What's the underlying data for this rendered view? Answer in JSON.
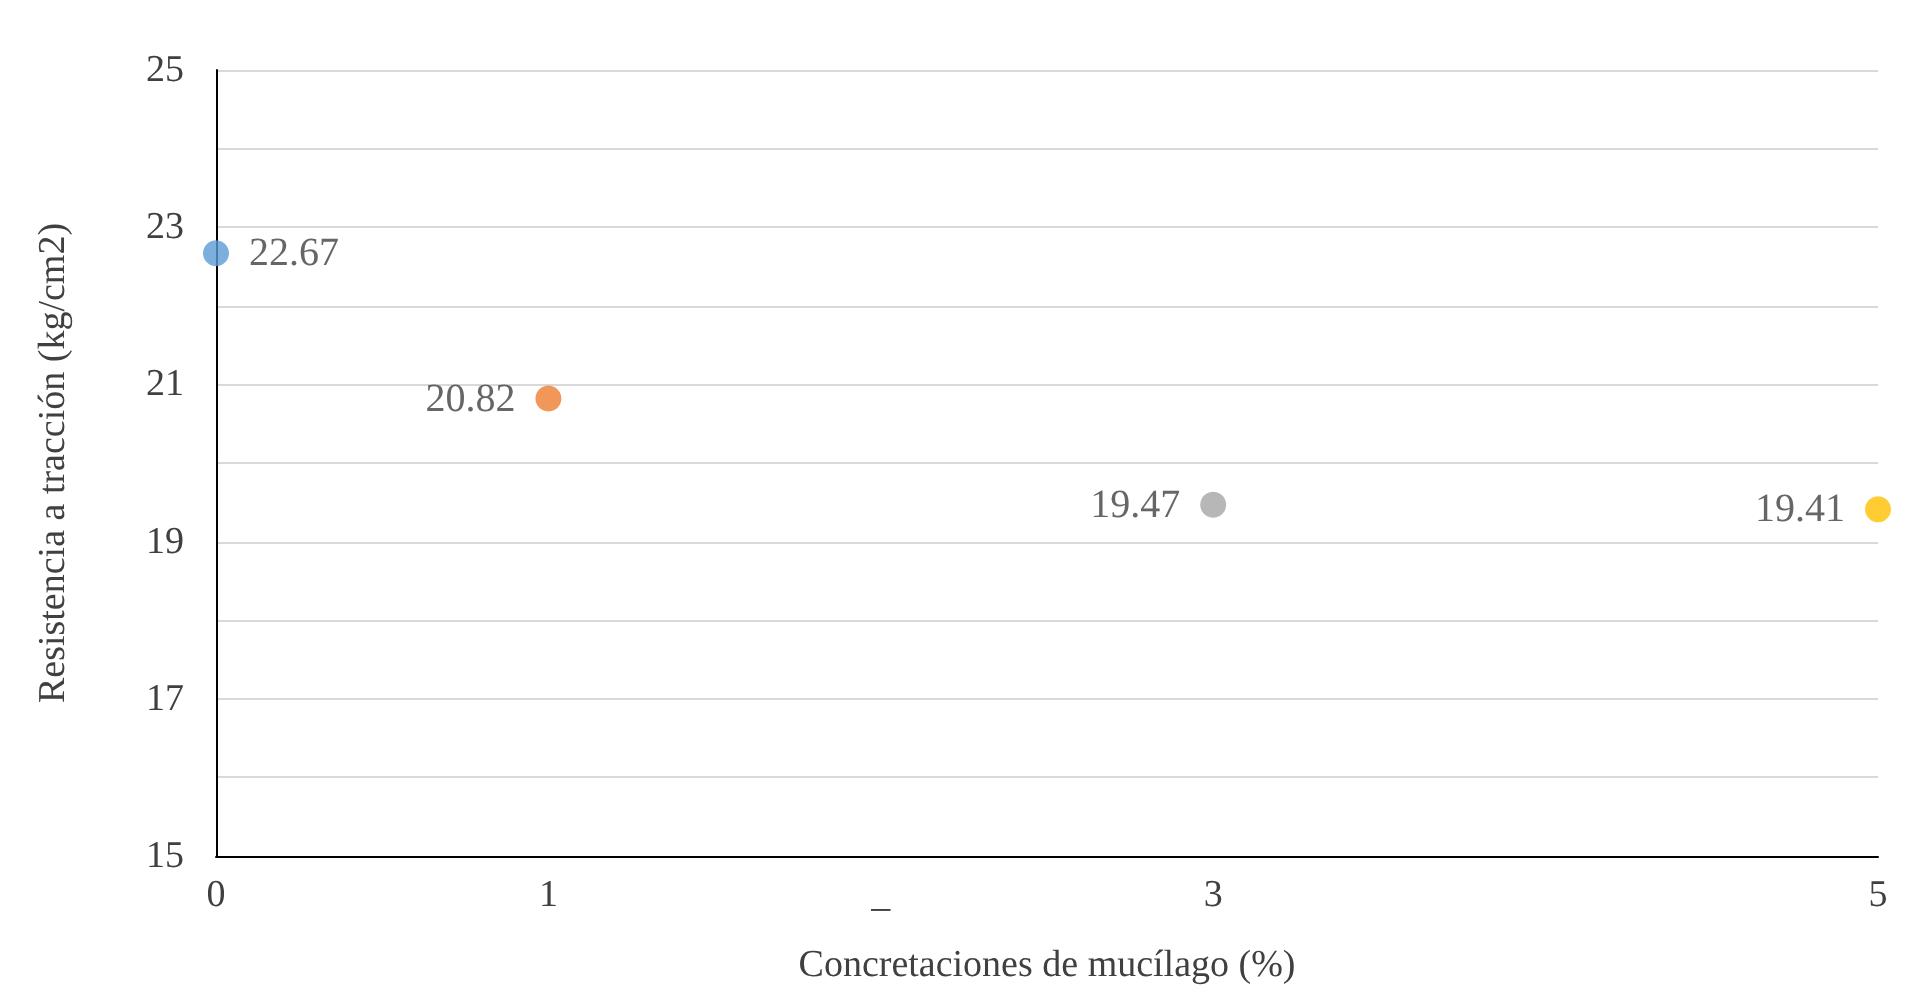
{
  "chart_data": {
    "type": "scatter",
    "xlabel": "Concretaciones de mucílago (%)",
    "ylabel": "Resistencia a tracción (kg/cm2)",
    "x": [
      0,
      1,
      3,
      5
    ],
    "values": [
      22.67,
      20.82,
      19.47,
      19.41
    ],
    "colors": [
      "#5b9bd5",
      "#ed7d31",
      "#a5a5a5",
      "#ffc000"
    ],
    "data_labels": true,
    "marker": "circle",
    "grid": "y",
    "xlim": [
      0,
      5
    ],
    "xticks": [
      0,
      1,
      {
        "value": 2,
        "label": "_"
      },
      3,
      5
    ],
    "ylim": [
      15,
      25
    ],
    "yticks": [
      15,
      {
        "value": 16,
        "label": null
      },
      17,
      {
        "value": 18,
        "label": null
      },
      19,
      {
        "value": 20,
        "label": null
      },
      21,
      {
        "value": 22,
        "label": null
      },
      23,
      {
        "value": 24,
        "label": null
      },
      25
    ]
  }
}
